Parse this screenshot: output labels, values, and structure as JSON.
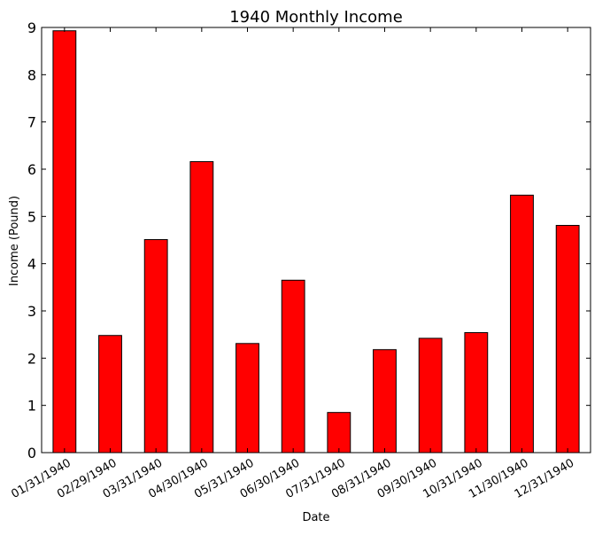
{
  "chart_data": {
    "type": "bar",
    "title": "1940 Monthly Income",
    "xlabel": "Date",
    "ylabel": "Income (Pound)",
    "categories": [
      "01/31/1940",
      "02/29/1940",
      "03/31/1940",
      "04/30/1940",
      "05/31/1940",
      "06/30/1940",
      "07/31/1940",
      "08/31/1940",
      "09/30/1940",
      "10/31/1940",
      "11/30/1940",
      "12/31/1940"
    ],
    "values": [
      8.93,
      2.48,
      4.51,
      6.16,
      2.31,
      3.65,
      0.85,
      2.18,
      2.42,
      2.54,
      5.45,
      4.81
    ],
    "ylim": [
      0,
      9
    ],
    "yticks": [
      "0",
      "1",
      "2",
      "3",
      "4",
      "5",
      "6",
      "7",
      "8",
      "9"
    ],
    "bar_color": "#ff0000",
    "edge_color": "#000000",
    "grid": false,
    "legend": "none"
  }
}
